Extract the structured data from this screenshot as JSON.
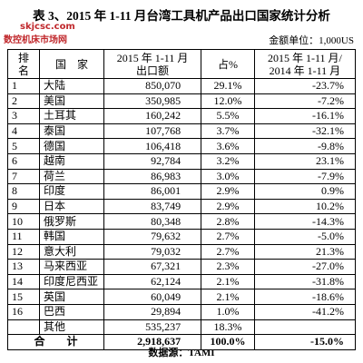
{
  "title": "表 3、2015 年 1-11 月台湾工具机产品出口国家统计分析",
  "watermark": {
    "site": "skjcsc.com",
    "name": "数控机床市场网"
  },
  "unit": "金额单位：1,000US",
  "table": {
    "headers": [
      [
        "排",
        "名"
      ],
      [
        "国　家"
      ],
      [
        "2015 年 1-11 月",
        "出口额"
      ],
      [
        "占%"
      ],
      [
        "2015 年 1-11 月/",
        "2014 年 1-11 月"
      ]
    ],
    "rows": [
      [
        "1",
        "大陆",
        "850,070",
        "29.1%",
        "-23.7%"
      ],
      [
        "2",
        "美国",
        "350,985",
        "12.0%",
        "-7.2%"
      ],
      [
        "3",
        "土耳其",
        "160,242",
        "5.5%",
        "-16.1%"
      ],
      [
        "4",
        "泰国",
        "107,768",
        "3.7%",
        "-32.1%"
      ],
      [
        "5",
        "德国",
        "106,418",
        "3.6%",
        "-9.8%"
      ],
      [
        "6",
        "越南",
        "92,784",
        "3.2%",
        "23.1%"
      ],
      [
        "7",
        "荷兰",
        "86,983",
        "3.0%",
        "-7.9%"
      ],
      [
        "8",
        "印度",
        "86,001",
        "2.9%",
        "0.9%"
      ],
      [
        "9",
        "日本",
        "83,749",
        "2.9%",
        "10.2%"
      ],
      [
        "10",
        "俄罗斯",
        "80,348",
        "2.8%",
        "-14.3%"
      ],
      [
        "11",
        "韩国",
        "79,632",
        "2.7%",
        "-5.0%"
      ],
      [
        "12",
        "意大利",
        "79,032",
        "2.7%",
        "21.3%"
      ],
      [
        "13",
        "马来西亚",
        "67,321",
        "2.3%",
        "-27.0%"
      ],
      [
        "14",
        "印度尼西亚",
        "62,124",
        "2.1%",
        "-31.8%"
      ],
      [
        "15",
        "英国",
        "60,049",
        "2.1%",
        "-18.6%"
      ],
      [
        "16",
        "巴西",
        "29,894",
        "1.0%",
        "-41.2%"
      ]
    ],
    "other": {
      "name": "其他",
      "amount": "535,237",
      "share": "18.3%"
    },
    "total": {
      "label": "合　　计",
      "amount": "2,918,637",
      "share": "100.0%",
      "change": "-15.0%"
    }
  },
  "source": "数据源：TAMI"
}
